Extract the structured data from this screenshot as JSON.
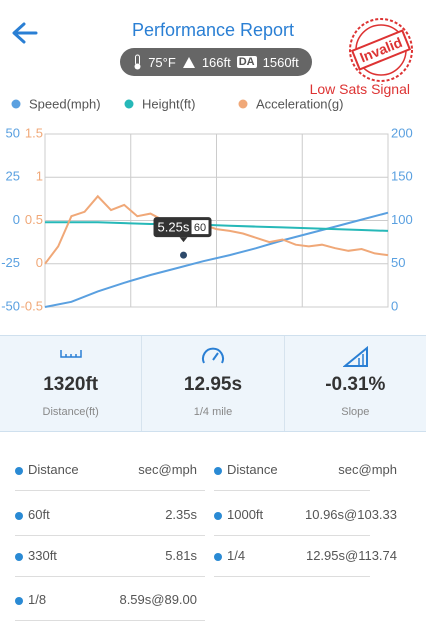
{
  "header": {
    "title": "Performance Report",
    "temperature": "75°F",
    "altitude": "166ft",
    "da_badge": "DA",
    "density_altitude": "1560ft",
    "stamp": "Invalid",
    "warning": "Low Sats Signal"
  },
  "chart_data": {
    "type": "line",
    "xlim": [
      0,
      13
    ],
    "xticks": [
      0,
      3.25,
      6.5,
      9.75,
      13
    ],
    "ylim": [
      -50,
      50
    ],
    "yticks": [
      -50,
      -25,
      0,
      25,
      50
    ],
    "ytick_color": "#5aa0e0",
    "y2lim": [
      0,
      200
    ],
    "y2ticks": [
      0,
      50,
      100,
      150,
      200
    ],
    "y2tick_color": "#5aa0e0",
    "y3lim": [
      -0.5,
      1.5
    ],
    "y3ticks": [
      -0.5,
      0,
      0.5,
      1,
      1.5
    ],
    "y3tick_color": "#f0a878",
    "grid": true,
    "series": [
      {
        "name": "Speed(mph)",
        "color": "#5aa0e0",
        "axis": "y2",
        "x": [
          0,
          1,
          2,
          3,
          4,
          5,
          6,
          7,
          8,
          9,
          10,
          11,
          12,
          13
        ],
        "values": [
          0,
          6,
          18,
          28,
          37,
          45,
          53,
          60,
          68,
          77,
          85,
          93,
          101,
          109
        ]
      },
      {
        "name": "Height(ft)",
        "color": "#26b8b8",
        "axis": "y",
        "x": [
          0,
          1,
          2,
          3,
          4,
          5,
          6,
          7,
          8,
          9,
          10,
          11,
          12,
          13
        ],
        "values": [
          -1,
          -1,
          -1,
          -1.5,
          -2,
          -2,
          -2.5,
          -3,
          -3.5,
          -4,
          -4.5,
          -5,
          -5.5,
          -6
        ]
      },
      {
        "name": "Acceleration(g)",
        "color": "#f0a878",
        "axis": "y3",
        "x": [
          0,
          0.5,
          1,
          1.5,
          2,
          2.5,
          3,
          3.5,
          4,
          4.5,
          5,
          5.5,
          6,
          6.5,
          7,
          7.5,
          8,
          8.5,
          9,
          9.5,
          10,
          10.5,
          11,
          11.5,
          12,
          12.5,
          13
        ],
        "values": [
          0,
          0.2,
          0.55,
          0.6,
          0.78,
          0.62,
          0.68,
          0.55,
          0.58,
          0.5,
          0.48,
          0.42,
          0.45,
          0.4,
          0.38,
          0.35,
          0.3,
          0.25,
          0.28,
          0.22,
          0.2,
          0.22,
          0.18,
          0.15,
          0.17,
          0.12,
          0.1
        ]
      }
    ],
    "tooltip": {
      "x": 5.25,
      "label": "5.25s",
      "value": 60
    }
  },
  "stats": [
    {
      "value": "1320ft",
      "label": "Distance(ft)"
    },
    {
      "value": "12.95s",
      "label": "1/4 mile"
    },
    {
      "value": "-0.31%",
      "label": "Slope"
    }
  ],
  "table": {
    "header": [
      "Distance",
      "sec@mph",
      "Distance",
      "sec@mph"
    ],
    "rows": [
      [
        "60ft",
        "2.35s",
        "1000ft",
        "10.96s@103.33"
      ],
      [
        "330ft",
        "5.81s",
        "1/4",
        "12.95s@113.74"
      ],
      [
        "1/8",
        "8.59s@89.00"
      ]
    ]
  }
}
